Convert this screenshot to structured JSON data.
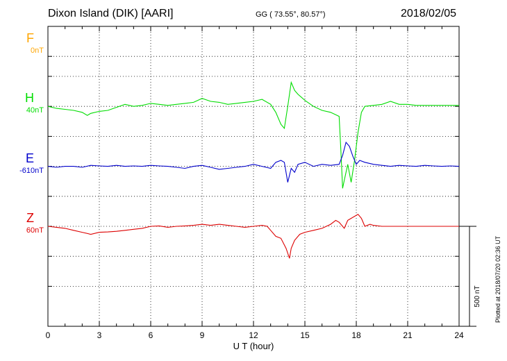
{
  "header": {
    "station": "Dixon Island (DIK)  [AARI]",
    "coords": "GG ( 73.55°,  80.57°)",
    "date": "2018/02/05"
  },
  "footer_note": "Plotted at 2018/07/20 02:36 UT",
  "scale_bar_label": "500 nT",
  "colors": {
    "F": "#ffa500",
    "H": "#00dd00",
    "E": "#0000cc",
    "Z": "#dd0000"
  },
  "chart_data": {
    "type": "line",
    "title": "Dixon Island (DIK)  [AARI]",
    "xlabel": "U T (hour)",
    "ylabel": "",
    "xlim": [
      0,
      24
    ],
    "xticks": [
      0,
      3,
      6,
      9,
      12,
      15,
      18,
      21,
      24
    ],
    "ylim": [
      -950,
      550
    ],
    "grid": true,
    "scale_bar_nT": 500,
    "series": [
      {
        "name": "F",
        "base_label": "0nT",
        "offset": 450,
        "x": [],
        "values": []
      },
      {
        "name": "H",
        "base_label": "40nT",
        "offset": 150,
        "x": [
          0,
          0.5,
          1,
          1.5,
          2,
          2.3,
          2.5,
          3,
          3.5,
          4,
          4.5,
          5,
          5.5,
          6,
          6.5,
          7,
          7.5,
          8,
          8.5,
          9,
          9.5,
          10,
          10.5,
          11,
          11.5,
          12,
          12.5,
          13,
          13.3,
          13.6,
          13.8,
          14.0,
          14.2,
          14.4,
          14.6,
          14.8,
          15,
          15.5,
          16,
          16.5,
          17,
          17.1,
          17.2,
          17.3,
          17.5,
          17.7,
          17.9,
          18.1,
          18.3,
          18.5,
          19,
          19.5,
          20,
          20.5,
          21,
          21.5,
          22,
          22.5,
          23,
          23.5,
          24
        ],
        "values": [
          150,
          140,
          135,
          130,
          120,
          105,
          115,
          125,
          130,
          145,
          160,
          150,
          155,
          165,
          160,
          155,
          160,
          165,
          170,
          190,
          175,
          170,
          160,
          165,
          170,
          175,
          185,
          160,
          120,
          60,
          40,
          150,
          270,
          230,
          210,
          195,
          180,
          150,
          130,
          120,
          100,
          -70,
          -260,
          -220,
          -140,
          -230,
          -120,
          20,
          120,
          150,
          155,
          160,
          175,
          160,
          160,
          155,
          155,
          155,
          155,
          155,
          155
        ]
      },
      {
        "name": "E",
        "base_label": "-610nT",
        "offset": -150,
        "x": [
          0,
          0.5,
          1,
          1.5,
          2,
          2.5,
          3,
          3.5,
          4,
          4.5,
          5,
          5.5,
          6,
          6.5,
          7,
          7.5,
          8,
          8.5,
          9,
          9.5,
          10,
          10.5,
          11,
          11.5,
          12,
          12.5,
          13,
          13.3,
          13.6,
          13.8,
          14.0,
          14.2,
          14.4,
          14.6,
          15,
          15.5,
          16,
          16.5,
          17,
          17.2,
          17.4,
          17.6,
          17.8,
          18,
          18.2,
          18.5,
          19,
          19.5,
          20,
          20.5,
          21,
          21.5,
          22,
          22.5,
          23,
          23.5,
          24
        ],
        "values": [
          -150,
          -155,
          -150,
          -150,
          -155,
          -145,
          -148,
          -150,
          -145,
          -150,
          -148,
          -150,
          -145,
          -148,
          -150,
          -155,
          -160,
          -150,
          -145,
          -155,
          -165,
          -160,
          -155,
          -150,
          -140,
          -150,
          -160,
          -130,
          -120,
          -130,
          -230,
          -160,
          -180,
          -140,
          -130,
          -150,
          -140,
          -145,
          -140,
          -95,
          -30,
          -50,
          -100,
          -140,
          -120,
          -130,
          -140,
          -145,
          -150,
          -145,
          -148,
          -150,
          -145,
          -148,
          -150,
          -148,
          -150
        ]
      },
      {
        "name": "Z",
        "base_label": "60nT",
        "offset": -450,
        "x": [
          0,
          0.5,
          1,
          1.5,
          2,
          2.5,
          3,
          3.5,
          4,
          4.5,
          5,
          5.5,
          6,
          6.5,
          7,
          7.5,
          8,
          8.5,
          9,
          9.5,
          10,
          10.5,
          11,
          11.5,
          12,
          12.5,
          12.8,
          13.0,
          13.3,
          13.6,
          13.9,
          14.1,
          14.2,
          14.4,
          14.7,
          15,
          15.5,
          16,
          16.5,
          16.8,
          17,
          17.3,
          17.5,
          17.7,
          17.9,
          18.1,
          18.3,
          18.5,
          18.8,
          19,
          19.5,
          20,
          21,
          22,
          23,
          24
        ],
        "values": [
          -450,
          -455,
          -460,
          -470,
          -480,
          -490,
          -480,
          -478,
          -475,
          -470,
          -465,
          -460,
          -450,
          -448,
          -455,
          -450,
          -448,
          -445,
          -440,
          -445,
          -440,
          -445,
          -450,
          -455,
          -450,
          -445,
          -450,
          -470,
          -500,
          -510,
          -560,
          -610,
          -560,
          -520,
          -490,
          -480,
          -470,
          -460,
          -440,
          -420,
          -430,
          -460,
          -420,
          -410,
          -400,
          -390,
          -410,
          -450,
          -440,
          -445,
          -450,
          -450,
          -450,
          -450,
          -450,
          -450
        ]
      }
    ]
  }
}
